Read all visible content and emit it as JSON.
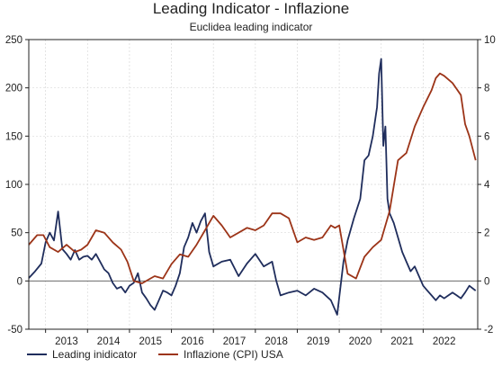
{
  "chart_data": {
    "type": "line",
    "title": "Leading Indicator - Inflazione",
    "subtitle": "Euclidea leading indicator",
    "xlabel": "",
    "ylabel_left": "",
    "ylabel_right": "",
    "x_ticks": [
      "2013",
      "2014",
      "2015",
      "2016",
      "2017",
      "2018",
      "2019",
      "2020",
      "2021",
      "2022"
    ],
    "xlim": [
      2012.6,
      2023.3
    ],
    "ylim_left": [
      -50,
      250
    ],
    "ylim_right": [
      -2,
      10
    ],
    "y_ticks_left": [
      -50,
      0,
      50,
      100,
      150,
      200,
      250
    ],
    "y_ticks_right": [
      -2,
      0,
      2,
      4,
      6,
      8,
      10
    ],
    "grid": true,
    "legend_position": "bottom",
    "series": [
      {
        "name": "Leading inidicator",
        "axis": "left",
        "color": "#1f2d5c",
        "x": [
          2012.6,
          2012.75,
          2012.9,
          2013.0,
          2013.1,
          2013.2,
          2013.3,
          2013.4,
          2013.5,
          2013.6,
          2013.7,
          2013.8,
          2013.9,
          2014.0,
          2014.1,
          2014.2,
          2014.3,
          2014.4,
          2014.5,
          2014.6,
          2014.7,
          2014.8,
          2014.9,
          2015.0,
          2015.1,
          2015.2,
          2015.3,
          2015.4,
          2015.5,
          2015.6,
          2015.7,
          2015.8,
          2015.9,
          2016.0,
          2016.1,
          2016.2,
          2016.3,
          2016.4,
          2016.5,
          2016.6,
          2016.7,
          2016.8,
          2016.9,
          2017.0,
          2017.2,
          2017.4,
          2017.6,
          2017.8,
          2018.0,
          2018.2,
          2018.4,
          2018.5,
          2018.6,
          2018.8,
          2019.0,
          2019.2,
          2019.4,
          2019.6,
          2019.8,
          2019.95,
          2020.1,
          2020.2,
          2020.35,
          2020.5,
          2020.6,
          2020.7,
          2020.8,
          2020.9,
          2020.95,
          2021.0,
          2021.05,
          2021.1,
          2021.15,
          2021.2,
          2021.3,
          2021.4,
          2021.5,
          2021.6,
          2021.7,
          2021.8,
          2021.9,
          2022.0,
          2022.1,
          2022.2,
          2022.3,
          2022.4,
          2022.5,
          2022.6,
          2022.7,
          2022.8,
          2022.9,
          2023.0,
          2023.1,
          2023.25
        ],
        "values": [
          3,
          10,
          18,
          40,
          50,
          42,
          72,
          33,
          28,
          22,
          32,
          22,
          25,
          26,
          22,
          28,
          20,
          12,
          8,
          -2,
          -8,
          -6,
          -12,
          -5,
          -2,
          8,
          -12,
          -18,
          -25,
          -30,
          -20,
          -10,
          -12,
          -15,
          -5,
          8,
          35,
          45,
          60,
          50,
          62,
          70,
          30,
          15,
          20,
          22,
          5,
          18,
          28,
          15,
          20,
          0,
          -15,
          -12,
          -10,
          -15,
          -8,
          -12,
          -20,
          -35,
          20,
          42,
          65,
          85,
          125,
          130,
          150,
          180,
          215,
          230,
          140,
          160,
          85,
          70,
          60,
          45,
          30,
          20,
          10,
          15,
          5,
          -5,
          -10,
          -15,
          -20,
          -15,
          -18,
          -15,
          -12,
          -15,
          -18,
          -12,
          -5,
          -10
        ]
      },
      {
        "name": "Inflazione (CPI) USA",
        "axis": "right",
        "color": "#9c3418",
        "x": [
          2012.6,
          2012.8,
          2012.95,
          2013.1,
          2013.3,
          2013.5,
          2013.7,
          2013.85,
          2014.0,
          2014.2,
          2014.4,
          2014.6,
          2014.8,
          2014.95,
          2015.1,
          2015.3,
          2015.5,
          2015.6,
          2015.8,
          2016.0,
          2016.2,
          2016.4,
          2016.6,
          2016.8,
          2016.9,
          2017.0,
          2017.2,
          2017.4,
          2017.6,
          2017.8,
          2018.0,
          2018.2,
          2018.4,
          2018.6,
          2018.8,
          2019.0,
          2019.2,
          2019.4,
          2019.6,
          2019.8,
          2019.9,
          2020.0,
          2020.2,
          2020.4,
          2020.6,
          2020.8,
          2021.0,
          2021.2,
          2021.4,
          2021.6,
          2021.8,
          2022.0,
          2022.2,
          2022.3,
          2022.4,
          2022.5,
          2022.7,
          2022.9,
          2023.0,
          2023.1,
          2023.25
        ],
        "values": [
          1.5,
          1.9,
          1.9,
          1.4,
          1.2,
          1.5,
          1.2,
          1.3,
          1.5,
          2.1,
          2.0,
          1.6,
          1.3,
          0.8,
          0.0,
          -0.1,
          0.1,
          0.2,
          0.1,
          0.7,
          1.1,
          1.0,
          1.5,
          2.1,
          2.4,
          2.7,
          2.3,
          1.8,
          2.0,
          2.2,
          2.1,
          2.3,
          2.8,
          2.8,
          2.6,
          1.6,
          1.8,
          1.7,
          1.8,
          2.3,
          2.2,
          2.3,
          0.3,
          0.1,
          1.0,
          1.4,
          1.7,
          2.9,
          5.0,
          5.3,
          6.4,
          7.2,
          7.9,
          8.4,
          8.6,
          8.5,
          8.2,
          7.7,
          6.5,
          6.0,
          5.0
        ]
      }
    ]
  }
}
